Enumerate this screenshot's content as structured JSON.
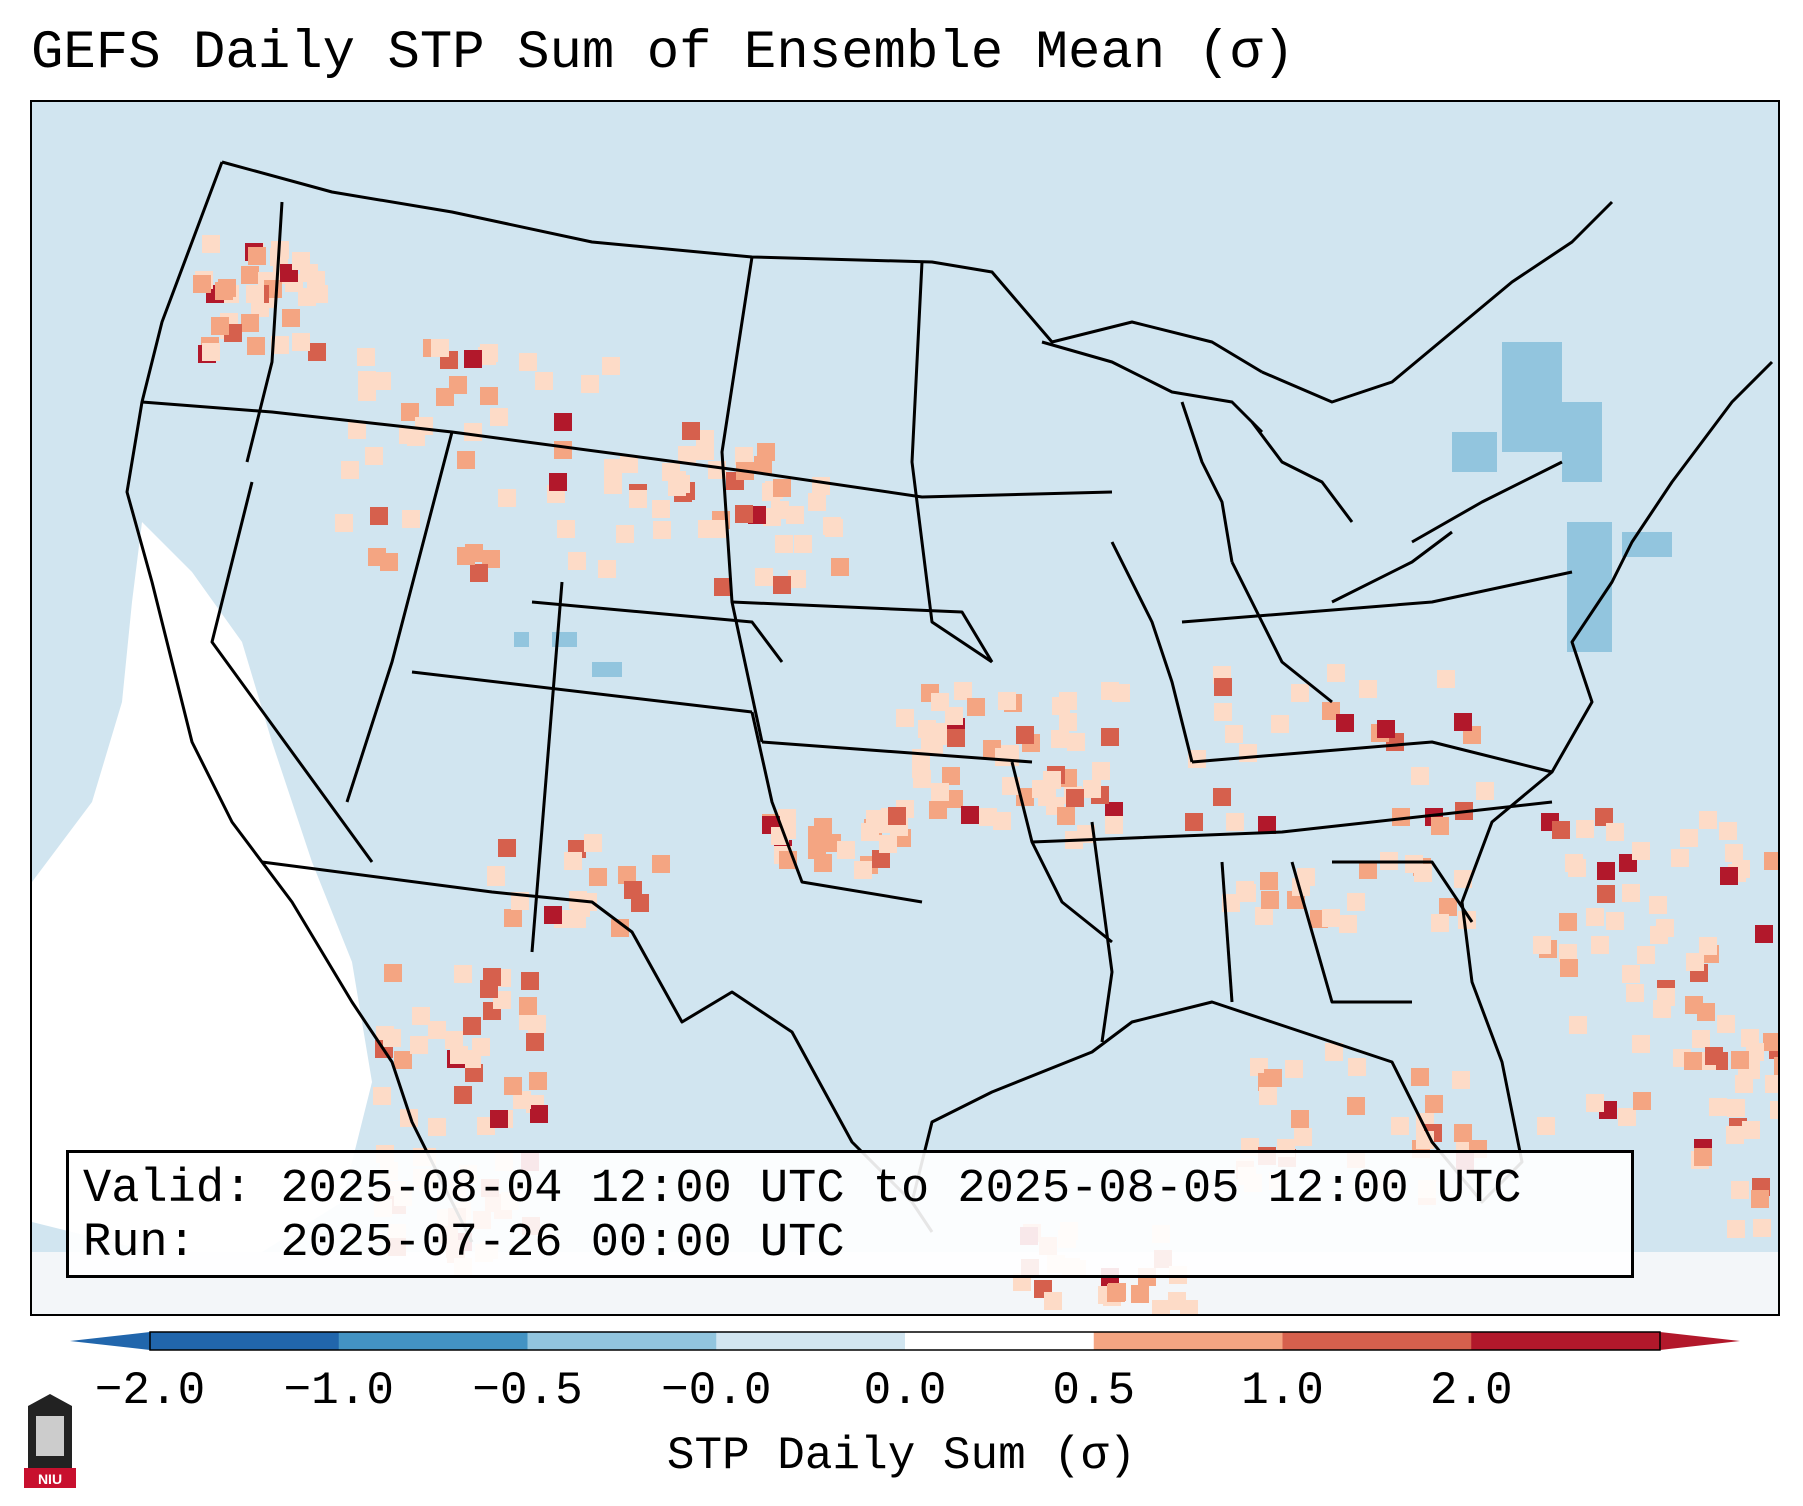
{
  "title": "GEFS Daily STP Sum of Ensemble Mean (σ)",
  "info": {
    "valid_label": "Valid:",
    "valid_value": "2025-08-04 12:00 UTC to 2025-08-05 12:00 UTC",
    "run_label": "Run:",
    "run_value": "2025-07-26 00:00 UTC"
  },
  "colorbar": {
    "label": "STP Daily Sum (σ)",
    "ticks": [
      "−2.0",
      "−1.0",
      "−0.5",
      "−0.0",
      "0.0",
      "0.5",
      "1.0",
      "2.0"
    ],
    "colors": [
      "#2166ac",
      "#4393c3",
      "#92c5de",
      "#d1e5f0",
      "#ffffff",
      "#fddbc7",
      "#f4a582",
      "#d6604d",
      "#b2182b"
    ]
  },
  "map": {
    "background_color": "#d1e5f0",
    "land_outline_color": "#000000"
  },
  "logo": {
    "text": "NIU",
    "color": "#c8102e"
  }
}
